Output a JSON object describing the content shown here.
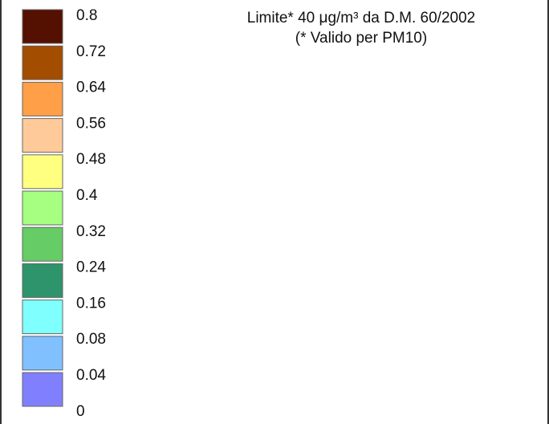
{
  "chart_data": {
    "type": "legend",
    "title": "",
    "annotation": [
      "Limite* 40 μg/m³ da D.M. 60/2002",
      "(* Valido per PM10)"
    ],
    "tick_labels": [
      "0.8",
      "0.72",
      "0.64",
      "0.56",
      "0.48",
      "0.4",
      "0.32",
      "0.24",
      "0.16",
      "0.08",
      "0.04",
      "0"
    ],
    "bins": [
      {
        "from": 0.72,
        "to": 0.8,
        "color": "#541000"
      },
      {
        "from": 0.64,
        "to": 0.72,
        "color": "#A34D00"
      },
      {
        "from": 0.56,
        "to": 0.64,
        "color": "#FF9F48"
      },
      {
        "from": 0.48,
        "to": 0.56,
        "color": "#FFCA9A"
      },
      {
        "from": 0.4,
        "to": 0.48,
        "color": "#FFFF80"
      },
      {
        "from": 0.32,
        "to": 0.4,
        "color": "#A6FF80"
      },
      {
        "from": 0.24,
        "to": 0.32,
        "color": "#66CC66"
      },
      {
        "from": 0.16,
        "to": 0.24,
        "color": "#2E946B"
      },
      {
        "from": 0.08,
        "to": 0.16,
        "color": "#80FFFF"
      },
      {
        "from": 0.04,
        "to": 0.08,
        "color": "#80C0FF"
      },
      {
        "from": 0,
        "to": 0.04,
        "color": "#8080FF"
      }
    ]
  }
}
